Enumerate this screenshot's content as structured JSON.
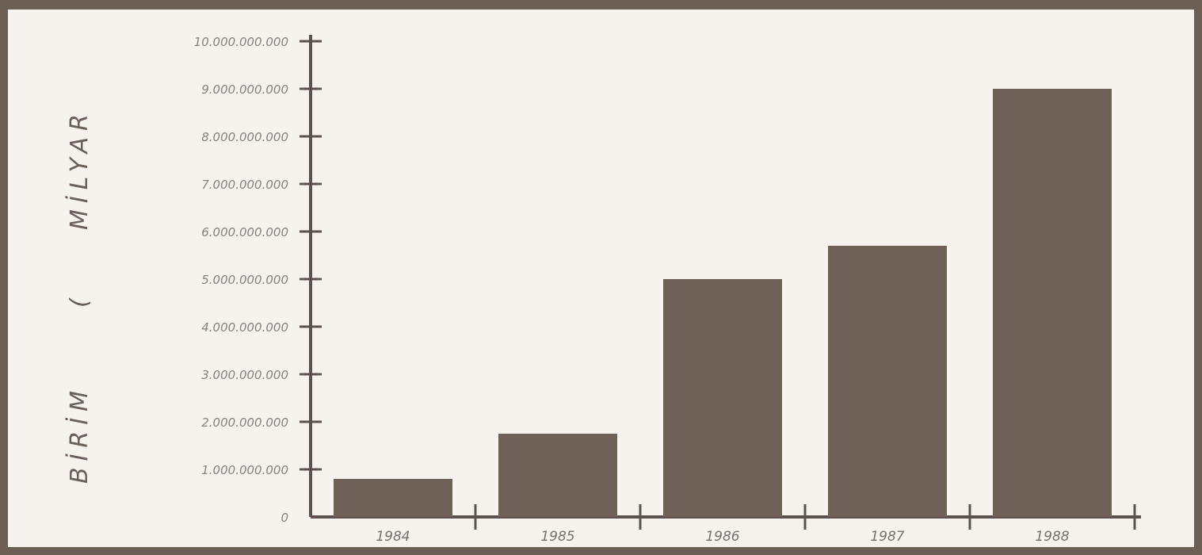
{
  "chart_data": {
    "type": "bar",
    "categories": [
      "1984",
      "1985",
      "1986",
      "1987",
      "1988"
    ],
    "values": [
      800000000,
      1750000000,
      5000000000,
      5700000000,
      9000000000
    ],
    "ylabel": "BİRİM ( MİLYAR",
    "ylabel_parts": [
      "BİRİM",
      "(",
      "MİLYAR"
    ],
    "yticks": [
      "0",
      "1.000.000.000",
      "2.000.000.000",
      "3.000.000.000",
      "4.000.000.000",
      "5.000.000.000",
      "6.000.000.000",
      "7.000.000.000",
      "8.000.000.000",
      "9.000.000.000",
      "10.000.000.000"
    ],
    "ylim": [
      0,
      10000000000
    ],
    "grid": false,
    "colors": {
      "bar": "#6f6058",
      "axis": "#5c514b",
      "background": "#f6f3ee"
    }
  }
}
